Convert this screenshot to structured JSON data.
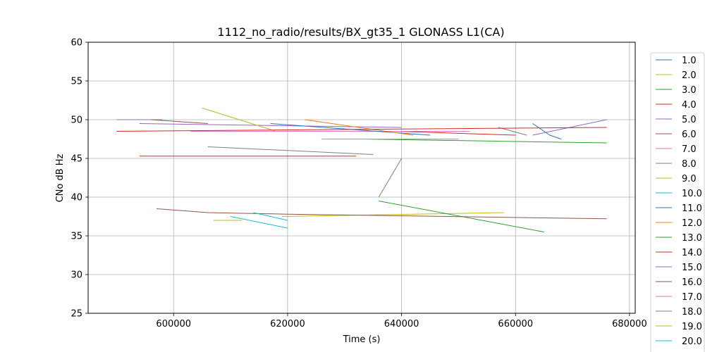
{
  "chart_data": {
    "type": "line",
    "title": "1112_no_radio/results/BX_gt35_1 GLONASS L1(CA)",
    "xlabel": "Time (s)",
    "ylabel": "CNo dB Hz",
    "xlim": [
      585000,
      681000
    ],
    "ylim": [
      25,
      60
    ],
    "x_ticks": [
      600000,
      620000,
      640000,
      660000,
      680000
    ],
    "x_tick_labels": [
      "600000",
      "620000",
      "640000",
      "660000",
      "680000"
    ],
    "y_ticks": [
      25,
      30,
      35,
      40,
      45,
      50,
      55,
      60
    ],
    "y_tick_labels": [
      "25",
      "30",
      "35",
      "40",
      "45",
      "50",
      "55",
      "60"
    ],
    "grid": true,
    "legend_position": "right",
    "series": [
      {
        "name": "1.0",
        "color": "#1f77b4",
        "segments": [
          [
            [
              663000,
              49.5
            ],
            [
              666000,
              48
            ],
            [
              668000,
              47.5
            ]
          ]
        ]
      },
      {
        "name": "2.0",
        "color": "#bcbd22",
        "segments": [
          [
            [
              619000,
              37.5
            ],
            [
              658000,
              38
            ]
          ]
        ]
      },
      {
        "name": "3.0",
        "color": "#2ca02c",
        "segments": [
          [
            [
              636000,
              39.5
            ],
            [
              665000,
              35.5
            ]
          ]
        ]
      },
      {
        "name": "4.0",
        "color": "#d62728",
        "segments": [
          [
            [
              594000,
              45.3
            ],
            [
              632000,
              45.3
            ]
          ],
          [
            [
              639000,
              48.5
            ],
            [
              660000,
              48
            ]
          ]
        ]
      },
      {
        "name": "5.0",
        "color": "#9467bd",
        "segments": [
          [
            [
              594000,
              49.5
            ],
            [
              640000,
              49
            ]
          ],
          [
            [
              663000,
              48
            ],
            [
              676000,
              50
            ]
          ]
        ]
      },
      {
        "name": "6.0",
        "color": "#8c564b",
        "segments": [
          [
            [
              597000,
              38.5
            ],
            [
              606000,
              38
            ],
            [
              620000,
              37.8
            ],
            [
              676000,
              37.2
            ]
          ]
        ]
      },
      {
        "name": "7.0",
        "color": "#e377c2",
        "segments": [
          [
            [
              603000,
              48.5
            ],
            [
              652000,
              48.5
            ]
          ]
        ]
      },
      {
        "name": "8.0",
        "color": "#7f7f7f",
        "segments": [
          [
            [
              606000,
              46.5
            ],
            [
              635000,
              45.5
            ]
          ],
          [
            [
              657000,
              49
            ],
            [
              662000,
              48
            ]
          ]
        ]
      },
      {
        "name": "9.0",
        "color": "#bcbd22",
        "segments": [
          [
            [
              605000,
              51.5
            ],
            [
              618000,
              48.5
            ]
          ]
        ]
      },
      {
        "name": "10.0",
        "color": "#17becf",
        "segments": [
          [
            [
              610000,
              37.5
            ],
            [
              620000,
              36
            ]
          ]
        ]
      },
      {
        "name": "11.0",
        "color": "#1f77b4",
        "segments": [
          [
            [
              617000,
              49.5
            ],
            [
              645000,
              48
            ]
          ]
        ]
      },
      {
        "name": "12.0",
        "color": "#ff7f0e",
        "segments": [
          [
            [
              623000,
              50
            ],
            [
              642000,
              48
            ]
          ]
        ]
      },
      {
        "name": "13.0",
        "color": "#2ca02c",
        "segments": [
          [
            [
              633000,
              47.5
            ],
            [
              676000,
              47
            ]
          ]
        ]
      },
      {
        "name": "14.0",
        "color": "#d62728",
        "segments": [
          [
            [
              590000,
              48.5
            ],
            [
              676000,
              49
            ]
          ]
        ]
      },
      {
        "name": "15.0",
        "color": "#9467bd",
        "segments": [
          [
            [
              590000,
              50
            ],
            [
              598000,
              50
            ]
          ]
        ]
      },
      {
        "name": "16.0",
        "color": "#8c564b",
        "segments": [
          [
            [
              596000,
              50
            ],
            [
              606000,
              49.5
            ]
          ]
        ]
      },
      {
        "name": "17.0",
        "color": "#e377c2",
        "segments": [
          [
            [
              626000,
              47.5
            ],
            [
              650000,
              47.5
            ]
          ]
        ]
      },
      {
        "name": "18.0",
        "color": "#7f7f7f",
        "segments": [
          [
            [
              636000,
              40
            ],
            [
              640000,
              45
            ]
          ]
        ]
      },
      {
        "name": "19.0",
        "color": "#bcbd22",
        "segments": [
          [
            [
              607000,
              37
            ],
            [
              612000,
              37
            ]
          ]
        ]
      },
      {
        "name": "20.0",
        "color": "#17becf",
        "segments": [
          [
            [
              614000,
              38
            ],
            [
              620000,
              37
            ]
          ]
        ]
      }
    ]
  }
}
